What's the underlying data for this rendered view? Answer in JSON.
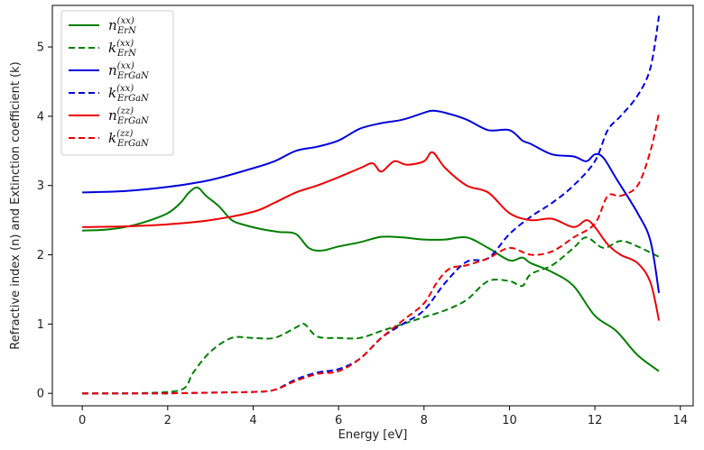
{
  "chart_data": {
    "type": "line",
    "title": "",
    "xlabel": "Energy [eV]",
    "ylabel": "Refractive index (n) and Extinction coefficient (k)",
    "xlim": [
      -0.7,
      14.3
    ],
    "ylim": [
      -0.18,
      5.6
    ],
    "xticks": [
      0,
      2,
      4,
      6,
      8,
      10,
      12,
      14
    ],
    "yticks": [
      0,
      1,
      2,
      3,
      4,
      5
    ],
    "grid": false,
    "legend_position": "top-left",
    "series": [
      {
        "id": "n_ErN_xx",
        "base": "n",
        "sup": "(xx)",
        "sub": "ErN",
        "color": "#008000",
        "dash": "solid",
        "x": [
          0,
          0.5,
          1.0,
          1.5,
          2.0,
          2.3,
          2.5,
          2.7,
          2.9,
          3.2,
          3.5,
          3.8,
          4.2,
          4.6,
          5.0,
          5.3,
          5.6,
          6.0,
          6.5,
          7.0,
          7.5,
          8.0,
          8.5,
          9.0,
          9.5,
          10.0,
          10.3,
          10.5,
          11.0,
          11.5,
          12.0,
          12.5,
          13.0,
          13.5
        ],
        "y": [
          2.35,
          2.36,
          2.4,
          2.48,
          2.6,
          2.75,
          2.9,
          2.97,
          2.85,
          2.7,
          2.5,
          2.43,
          2.37,
          2.33,
          2.3,
          2.1,
          2.06,
          2.12,
          2.18,
          2.26,
          2.25,
          2.22,
          2.22,
          2.25,
          2.1,
          1.92,
          1.96,
          1.88,
          1.75,
          1.55,
          1.12,
          0.9,
          0.55,
          0.32
        ]
      },
      {
        "id": "k_ErN_xx",
        "base": "k",
        "sup": "(xx)",
        "sub": "ErN",
        "color": "#008000",
        "dash": "dashed",
        "x": [
          0,
          1.0,
          2.0,
          2.4,
          2.6,
          3.0,
          3.5,
          4.0,
          4.5,
          5.0,
          5.2,
          5.5,
          6.0,
          6.5,
          7.0,
          7.5,
          8.0,
          8.5,
          9.0,
          9.5,
          10.0,
          10.3,
          10.5,
          11.0,
          11.5,
          11.8,
          12.2,
          12.6,
          13.0,
          13.5
        ],
        "y": [
          0,
          0,
          0.02,
          0.08,
          0.3,
          0.6,
          0.8,
          0.8,
          0.8,
          0.95,
          1.0,
          0.82,
          0.8,
          0.8,
          0.9,
          1.0,
          1.1,
          1.2,
          1.35,
          1.62,
          1.62,
          1.55,
          1.72,
          1.85,
          2.1,
          2.25,
          2.1,
          2.2,
          2.12,
          1.97
        ]
      },
      {
        "id": "n_ErGaN_xx",
        "base": "n",
        "sup": "(xx)",
        "sub": "ErGaN",
        "color": "#0000dd",
        "dash": "solid",
        "x": [
          0,
          1.0,
          2.0,
          3.0,
          4.0,
          4.5,
          5.0,
          5.5,
          6.0,
          6.5,
          7.0,
          7.5,
          8.0,
          8.2,
          8.5,
          9.0,
          9.5,
          10.0,
          10.3,
          10.5,
          11.0,
          11.5,
          11.8,
          12.0,
          12.2,
          12.5,
          13.0,
          13.3,
          13.5
        ],
        "y": [
          2.9,
          2.92,
          2.98,
          3.08,
          3.25,
          3.35,
          3.5,
          3.56,
          3.65,
          3.82,
          3.9,
          3.95,
          4.05,
          4.08,
          4.05,
          3.95,
          3.8,
          3.8,
          3.65,
          3.6,
          3.45,
          3.42,
          3.35,
          3.45,
          3.4,
          3.1,
          2.6,
          2.2,
          1.45
        ]
      },
      {
        "id": "k_ErGaN_xx",
        "base": "k",
        "sup": "(xx)",
        "sub": "ErGaN",
        "color": "#0000dd",
        "dash": "dashed",
        "x": [
          0,
          1.0,
          2.0,
          3.0,
          4.0,
          4.5,
          5.0,
          5.5,
          6.0,
          6.5,
          7.0,
          7.5,
          8.0,
          8.5,
          9.0,
          9.5,
          10.0,
          10.5,
          11.0,
          11.5,
          12.0,
          12.3,
          12.6,
          13.0,
          13.3,
          13.5
        ],
        "y": [
          0,
          0,
          0,
          0.01,
          0.02,
          0.05,
          0.2,
          0.3,
          0.35,
          0.5,
          0.8,
          1.0,
          1.2,
          1.6,
          1.9,
          1.95,
          2.3,
          2.55,
          2.75,
          3.0,
          3.35,
          3.8,
          4.0,
          4.3,
          4.7,
          5.45
        ]
      },
      {
        "id": "n_ErGaN_zz",
        "base": "n",
        "sup": "(zz)",
        "sub": "ErGaN",
        "color": "#ee0000",
        "dash": "solid",
        "x": [
          0,
          1.0,
          2.0,
          3.0,
          4.0,
          4.5,
          5.0,
          5.5,
          6.0,
          6.5,
          6.8,
          7.0,
          7.3,
          7.6,
          8.0,
          8.2,
          8.5,
          9.0,
          9.5,
          10.0,
          10.5,
          11.0,
          11.5,
          11.8,
          12.0,
          12.3,
          12.6,
          13.0,
          13.3,
          13.5
        ],
        "y": [
          2.4,
          2.41,
          2.44,
          2.5,
          2.62,
          2.75,
          2.9,
          3.0,
          3.12,
          3.25,
          3.32,
          3.2,
          3.35,
          3.3,
          3.35,
          3.48,
          3.25,
          3.0,
          2.9,
          2.6,
          2.5,
          2.52,
          2.4,
          2.5,
          2.4,
          2.15,
          2.0,
          1.88,
          1.6,
          1.05
        ]
      },
      {
        "id": "k_ErGaN_zz",
        "base": "k",
        "sup": "(zz)",
        "sub": "ErGaN",
        "color": "#ee0000",
        "dash": "dashed",
        "x": [
          0,
          1.0,
          2.0,
          3.0,
          4.0,
          4.5,
          5.0,
          5.5,
          6.0,
          6.5,
          7.0,
          7.5,
          8.0,
          8.3,
          8.6,
          9.0,
          9.5,
          10.0,
          10.5,
          11.0,
          11.5,
          12.0,
          12.3,
          12.6,
          13.0,
          13.3,
          13.5
        ],
        "y": [
          0,
          0,
          0,
          0.01,
          0.02,
          0.05,
          0.18,
          0.28,
          0.32,
          0.5,
          0.8,
          1.05,
          1.3,
          1.6,
          1.8,
          1.85,
          1.95,
          2.1,
          2.0,
          2.05,
          2.25,
          2.45,
          2.85,
          2.85,
          3.0,
          3.5,
          4.05
        ]
      }
    ]
  }
}
